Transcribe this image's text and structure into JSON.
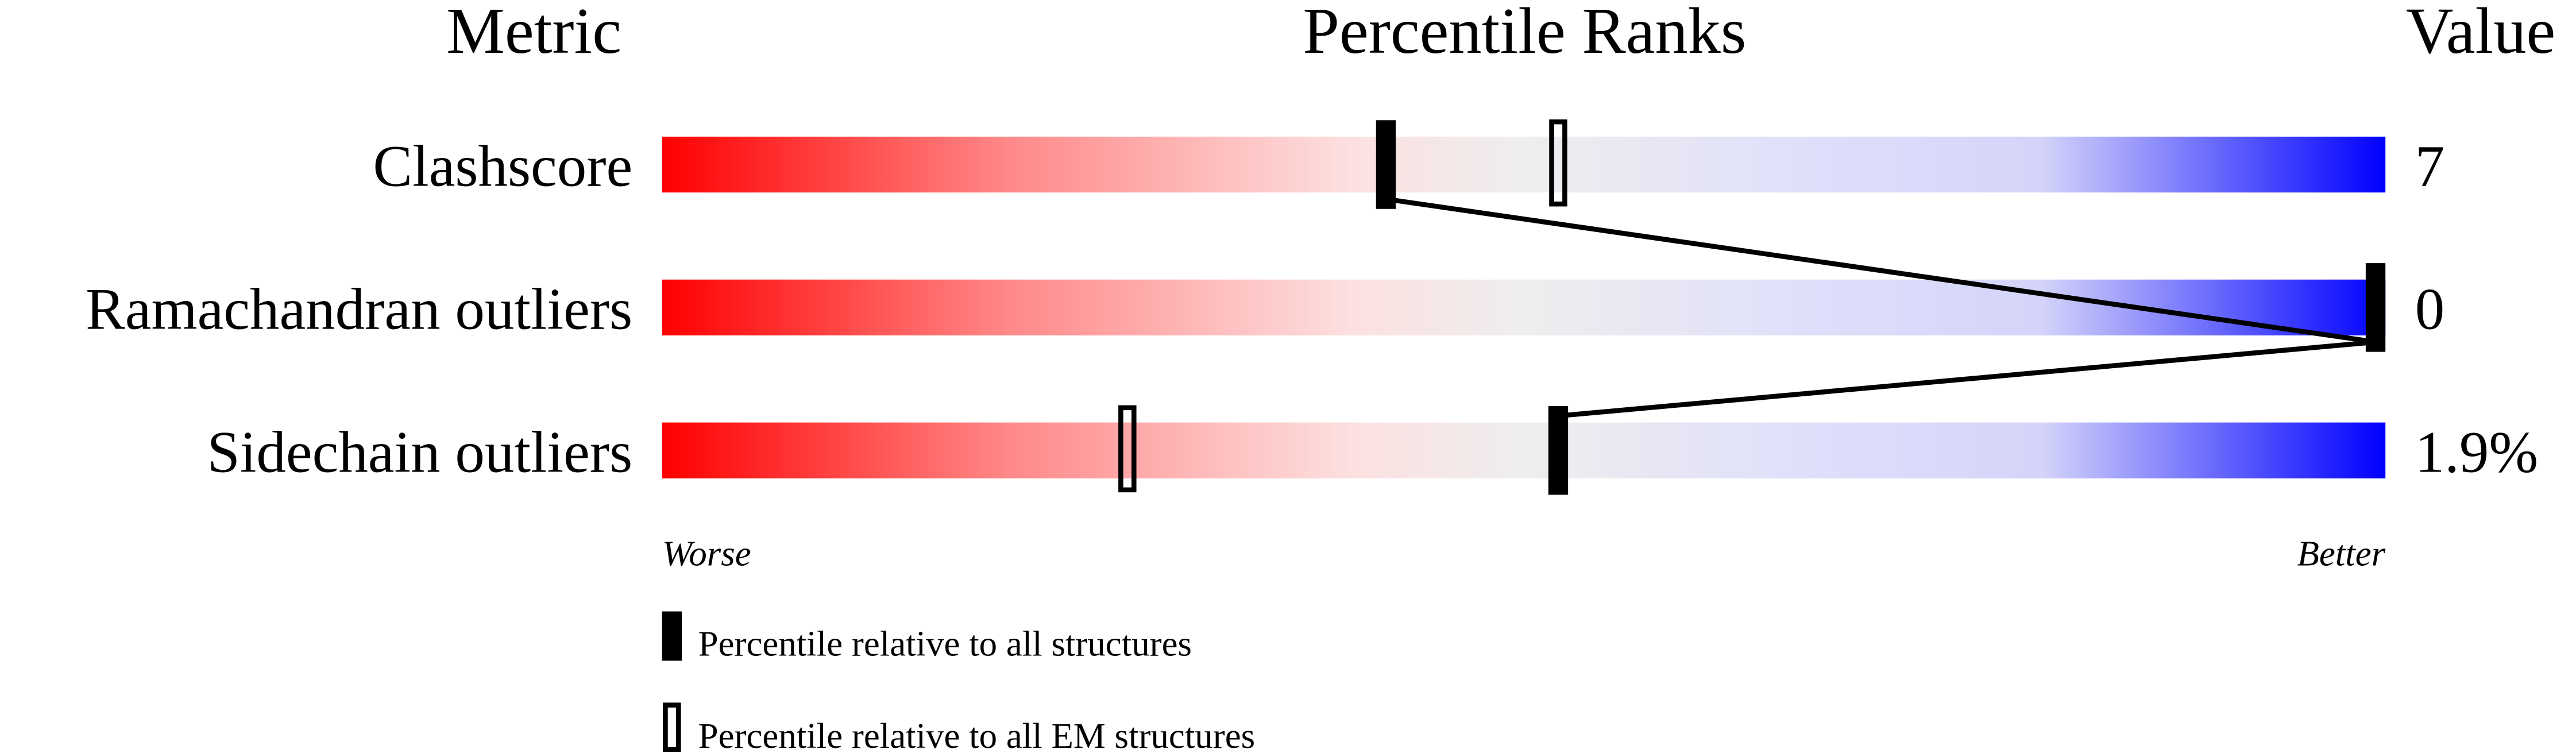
{
  "chart_data": {
    "type": "bar",
    "headers": {
      "metric": "Metric",
      "percentile": "Percentile Ranks",
      "value": "Value"
    },
    "xlim": [
      0,
      100
    ],
    "metrics": [
      {
        "label": "Clashscore",
        "value": "7",
        "percentile_all": 42,
        "percentile_em": 52
      },
      {
        "label": "Ramachandran outliers",
        "value": "0",
        "percentile_all": 100,
        "percentile_em": 100
      },
      {
        "label": "Sidechain outliers",
        "value": "1.9%",
        "percentile_all": 52,
        "percentile_em": 27
      }
    ],
    "axis": {
      "left": "Worse",
      "right": "Better"
    },
    "legend": {
      "all": "Percentile relative to all structures",
      "em": "Percentile relative to all EM structures"
    },
    "colors": {
      "worse": "#ff0000",
      "middle": "#eeeeee",
      "better": "#0000ff",
      "marker": "#000000"
    }
  }
}
